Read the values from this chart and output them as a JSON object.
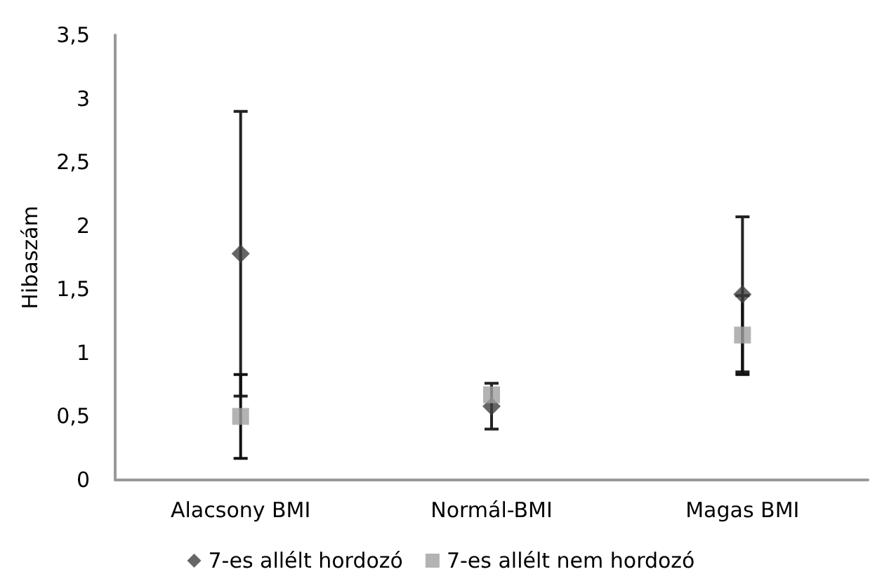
{
  "chart_data": {
    "type": "scatter",
    "ylabel": "Hibaszám",
    "categories": [
      "Alacsony BMI",
      "Normál-BMI",
      "Magas BMI"
    ],
    "series": [
      {
        "name": "7-es allélt hordozó",
        "color": "#404040",
        "marker": "diamond",
        "values": [
          1.78,
          0.58,
          1.46
        ],
        "errors": [
          1.12,
          0.18,
          0.61
        ]
      },
      {
        "name": "7-es allélt nem hordozó",
        "color": "#a0a0a0",
        "marker": "square",
        "values": [
          0.5,
          0.67,
          1.14
        ],
        "errors": [
          0.33,
          null,
          0.31
        ]
      }
    ],
    "ylim": [
      0,
      3.5
    ],
    "yticks": [
      0,
      {
        "value": 0.5,
        "label": "0,5"
      },
      1,
      {
        "value": 1.5,
        "label": "1,5"
      },
      2,
      {
        "value": 2.5,
        "label": "2,5"
      },
      3,
      {
        "value": 3.5,
        "label": "3,5"
      }
    ],
    "grid": false,
    "legend": "bottom"
  }
}
